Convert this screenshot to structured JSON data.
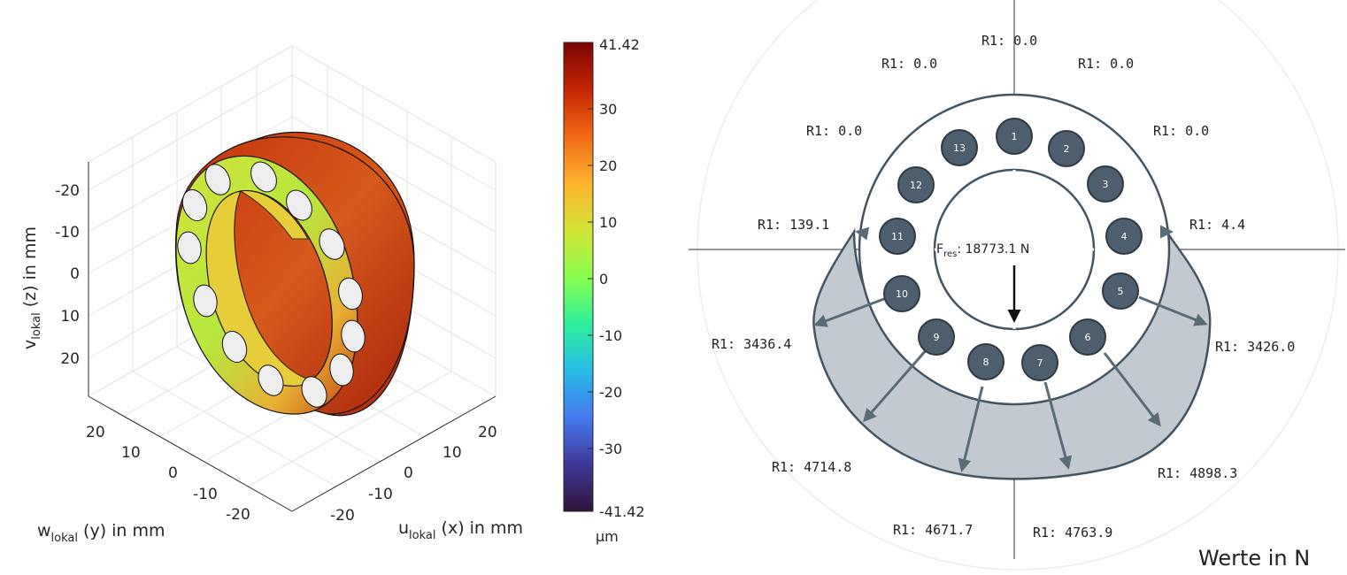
{
  "left_plot": {
    "axes": {
      "z_label": {
        "main": "v",
        "sub": "lokal",
        "rest": " (z) in mm"
      },
      "y_label": {
        "main": "w",
        "sub": "lokal",
        "rest": " (y) in mm"
      },
      "x_label": {
        "main": "u",
        "sub": "lokal",
        "rest": " (x) in mm"
      },
      "z_ticks": [
        "-20",
        "-10",
        "0",
        "10",
        "20"
      ],
      "y_ticks": [
        "20",
        "10",
        "0",
        "-10",
        "-20"
      ],
      "x_ticks": [
        "-20",
        "-10",
        "0",
        "10",
        "20"
      ]
    },
    "colorbar": {
      "ticks": [
        "41.42",
        "30",
        "20",
        "10",
        "0",
        "-10",
        "-20",
        "-30",
        "-41.42"
      ],
      "unit": "µm",
      "colors": [
        "#7a0403",
        "#c42503",
        "#f16a15",
        "#fdb32f",
        "#d3e436",
        "#89fe4e",
        "#2ef09b",
        "#27bce6",
        "#4679f0",
        "#3e3997",
        "#30123b"
      ]
    },
    "model_colors": {
      "outer_dark": "#b52a0c",
      "outer_mid": "#d9551b",
      "face": "#c9de3a",
      "inner": "#e7cd3a",
      "ball": "#eeeeee"
    }
  },
  "right_plot": {
    "balls": [
      "1",
      "2",
      "3",
      "4",
      "5",
      "6",
      "7",
      "8",
      "9",
      "10",
      "11",
      "12",
      "13"
    ],
    "ball_color": "#4d5f6e",
    "resultant": {
      "main": "F",
      "sub": "res",
      "rest": ": 18773.1 N"
    },
    "labels": [
      "R1: 0.0",
      "R1: 0.0",
      "R1: 0.0",
      "R1: 4.4",
      "R1: 3426.0",
      "R1: 4898.3",
      "R1: 4763.9",
      "R1: 4671.7",
      "R1: 4714.8",
      "R1: 3436.4",
      "R1: 139.1",
      "R1: 0.0",
      "R1: 0.0"
    ],
    "units_note": "Werte in N"
  }
}
